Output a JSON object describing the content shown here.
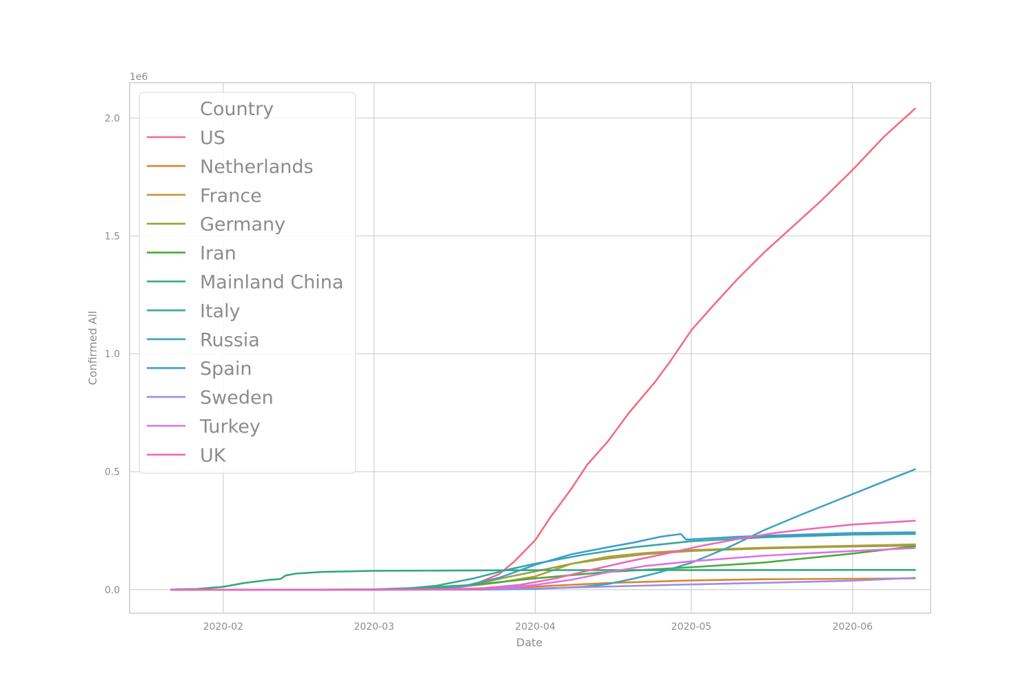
{
  "chart_data": {
    "type": "line",
    "title": "",
    "xlabel": "Date",
    "ylabel": "Confirmed All",
    "y_offset_label": "1e6",
    "xlim": [
      "2020-01-14",
      "2020-06-16"
    ],
    "ylim": [
      -0.1,
      2.15
    ],
    "x_ticks": [
      "2020-02",
      "2020-03",
      "2020-04",
      "2020-05",
      "2020-06"
    ],
    "y_ticks": [
      "0.0",
      "0.5",
      "1.0",
      "1.5",
      "2.0"
    ],
    "grid": true,
    "legend": {
      "title": "Country",
      "placement": "top-left"
    },
    "series": [
      {
        "name": "US",
        "color": "#f06d84",
        "points": [
          [
            "2020-01-22",
            0
          ],
          [
            "2020-03-01",
            0
          ],
          [
            "2020-03-15",
            0.003
          ],
          [
            "2020-03-20",
            0.02
          ],
          [
            "2020-03-25",
            0.065
          ],
          [
            "2020-03-28",
            0.12
          ],
          [
            "2020-04-01",
            0.21
          ],
          [
            "2020-04-04",
            0.31
          ],
          [
            "2020-04-08",
            0.43
          ],
          [
            "2020-04-11",
            0.53
          ],
          [
            "2020-04-15",
            0.63
          ],
          [
            "2020-04-19",
            0.75
          ],
          [
            "2020-04-24",
            0.88
          ],
          [
            "2020-04-27",
            0.97
          ],
          [
            "2020-05-01",
            1.1
          ],
          [
            "2020-05-05",
            1.2
          ],
          [
            "2020-05-10",
            1.32
          ],
          [
            "2020-05-15",
            1.43
          ],
          [
            "2020-05-20",
            1.53
          ],
          [
            "2020-05-26",
            1.65
          ],
          [
            "2020-06-01",
            1.78
          ],
          [
            "2020-06-07",
            1.92
          ],
          [
            "2020-06-13",
            2.04
          ]
        ]
      },
      {
        "name": "Netherlands",
        "color": "#e0822f",
        "points": [
          [
            "2020-01-22",
            0
          ],
          [
            "2020-03-01",
            0
          ],
          [
            "2020-03-20",
            0.004
          ],
          [
            "2020-04-01",
            0.013
          ],
          [
            "2020-04-15",
            0.028
          ],
          [
            "2020-05-01",
            0.039
          ],
          [
            "2020-05-15",
            0.044
          ],
          [
            "2020-06-01",
            0.046
          ],
          [
            "2020-06-13",
            0.048
          ]
        ]
      },
      {
        "name": "France",
        "color": "#bf9838",
        "points": [
          [
            "2020-01-22",
            0
          ],
          [
            "2020-03-01",
            0
          ],
          [
            "2020-03-15",
            0.005
          ],
          [
            "2020-03-25",
            0.03
          ],
          [
            "2020-04-01",
            0.056
          ],
          [
            "2020-04-08",
            0.11
          ],
          [
            "2020-04-15",
            0.14
          ],
          [
            "2020-04-22",
            0.155
          ],
          [
            "2020-05-01",
            0.168
          ],
          [
            "2020-05-15",
            0.178
          ],
          [
            "2020-06-01",
            0.186
          ],
          [
            "2020-06-13",
            0.192
          ]
        ]
      },
      {
        "name": "Germany",
        "color": "#9aa43a",
        "points": [
          [
            "2020-01-22",
            0
          ],
          [
            "2020-03-01",
            0
          ],
          [
            "2020-03-10",
            0.002
          ],
          [
            "2020-03-20",
            0.02
          ],
          [
            "2020-03-27",
            0.055
          ],
          [
            "2020-04-01",
            0.077
          ],
          [
            "2020-04-08",
            0.11
          ],
          [
            "2020-04-15",
            0.132
          ],
          [
            "2020-04-22",
            0.15
          ],
          [
            "2020-05-01",
            0.164
          ],
          [
            "2020-05-15",
            0.175
          ],
          [
            "2020-06-01",
            0.183
          ],
          [
            "2020-06-13",
            0.187
          ]
        ]
      },
      {
        "name": "Iran",
        "color": "#4aab3c",
        "points": [
          [
            "2020-01-22",
            0
          ],
          [
            "2020-02-20",
            0
          ],
          [
            "2020-03-01",
            0.001
          ],
          [
            "2020-03-10",
            0.008
          ],
          [
            "2020-03-20",
            0.02
          ],
          [
            "2020-04-01",
            0.048
          ],
          [
            "2020-04-15",
            0.075
          ],
          [
            "2020-05-01",
            0.095
          ],
          [
            "2020-05-15",
            0.115
          ],
          [
            "2020-06-01",
            0.153
          ],
          [
            "2020-06-13",
            0.184
          ]
        ]
      },
      {
        "name": "Mainland China",
        "color": "#35a77c",
        "points": [
          [
            "2020-01-22",
            0.0006
          ],
          [
            "2020-01-27",
            0.003
          ],
          [
            "2020-02-01",
            0.012
          ],
          [
            "2020-02-05",
            0.028
          ],
          [
            "2020-02-10",
            0.042
          ],
          [
            "2020-02-12",
            0.045
          ],
          [
            "2020-02-13",
            0.06
          ],
          [
            "2020-02-15",
            0.068
          ],
          [
            "2020-02-20",
            0.075
          ],
          [
            "2020-03-01",
            0.08
          ],
          [
            "2020-03-15",
            0.081
          ],
          [
            "2020-04-01",
            0.0825
          ],
          [
            "2020-05-01",
            0.083
          ],
          [
            "2020-06-13",
            0.0835
          ]
        ]
      },
      {
        "name": "Italy",
        "color": "#38a89c",
        "points": [
          [
            "2020-01-22",
            0
          ],
          [
            "2020-02-20",
            0
          ],
          [
            "2020-03-01",
            0.001
          ],
          [
            "2020-03-08",
            0.006
          ],
          [
            "2020-03-13",
            0.017
          ],
          [
            "2020-03-20",
            0.047
          ],
          [
            "2020-03-27",
            0.086
          ],
          [
            "2020-04-01",
            0.11
          ],
          [
            "2020-04-10",
            0.147
          ],
          [
            "2020-04-20",
            0.18
          ],
          [
            "2020-05-01",
            0.205
          ],
          [
            "2020-05-15",
            0.222
          ],
          [
            "2020-06-01",
            0.233
          ],
          [
            "2020-06-13",
            0.236
          ]
        ]
      },
      {
        "name": "Russia",
        "color": "#3ba5bf",
        "points": [
          [
            "2020-01-22",
            0
          ],
          [
            "2020-03-20",
            0
          ],
          [
            "2020-04-01",
            0.003
          ],
          [
            "2020-04-10",
            0.012
          ],
          [
            "2020-04-15",
            0.024
          ],
          [
            "2020-04-20",
            0.047
          ],
          [
            "2020-04-25",
            0.074
          ],
          [
            "2020-05-01",
            0.114
          ],
          [
            "2020-05-08",
            0.178
          ],
          [
            "2020-05-15",
            0.252
          ],
          [
            "2020-05-22",
            0.317
          ],
          [
            "2020-06-01",
            0.405
          ],
          [
            "2020-06-07",
            0.458
          ],
          [
            "2020-06-13",
            0.51
          ]
        ]
      },
      {
        "name": "Spain",
        "color": "#3e9bd8",
        "points": [
          [
            "2020-01-22",
            0
          ],
          [
            "2020-02-25",
            0
          ],
          [
            "2020-03-05",
            0.0003
          ],
          [
            "2020-03-12",
            0.003
          ],
          [
            "2020-03-18",
            0.014
          ],
          [
            "2020-03-25",
            0.05
          ],
          [
            "2020-04-01",
            0.105
          ],
          [
            "2020-04-08",
            0.15
          ],
          [
            "2020-04-15",
            0.18
          ],
          [
            "2020-04-20",
            0.2
          ],
          [
            "2020-04-25",
            0.224
          ],
          [
            "2020-04-29",
            0.236
          ],
          [
            "2020-04-30",
            0.212
          ],
          [
            "2020-05-10",
            0.224
          ],
          [
            "2020-05-20",
            0.232
          ],
          [
            "2020-06-01",
            0.24
          ],
          [
            "2020-06-13",
            0.243
          ]
        ]
      },
      {
        "name": "Sweden",
        "color": "#9c8ee6",
        "points": [
          [
            "2020-01-22",
            0
          ],
          [
            "2020-03-10",
            0
          ],
          [
            "2020-04-01",
            0.005
          ],
          [
            "2020-04-15",
            0.013
          ],
          [
            "2020-05-01",
            0.022
          ],
          [
            "2020-05-15",
            0.029
          ],
          [
            "2020-06-01",
            0.038
          ],
          [
            "2020-06-13",
            0.05
          ]
        ]
      },
      {
        "name": "Turkey",
        "color": "#df6fe8",
        "points": [
          [
            "2020-01-22",
            0
          ],
          [
            "2020-03-12",
            0
          ],
          [
            "2020-03-20",
            0.001
          ],
          [
            "2020-03-27",
            0.01
          ],
          [
            "2020-04-01",
            0.02
          ],
          [
            "2020-04-08",
            0.042
          ],
          [
            "2020-04-15",
            0.074
          ],
          [
            "2020-04-22",
            0.1
          ],
          [
            "2020-05-01",
            0.12
          ],
          [
            "2020-05-15",
            0.144
          ],
          [
            "2020-06-01",
            0.164
          ],
          [
            "2020-06-13",
            0.176
          ]
        ]
      },
      {
        "name": "UK",
        "color": "#f067b8",
        "points": [
          [
            "2020-01-22",
            0
          ],
          [
            "2020-03-01",
            0
          ],
          [
            "2020-03-15",
            0.001
          ],
          [
            "2020-03-22",
            0.006
          ],
          [
            "2020-03-29",
            0.02
          ],
          [
            "2020-04-05",
            0.048
          ],
          [
            "2020-04-12",
            0.085
          ],
          [
            "2020-04-19",
            0.12
          ],
          [
            "2020-04-26",
            0.152
          ],
          [
            "2020-05-03",
            0.186
          ],
          [
            "2020-05-10",
            0.215
          ],
          [
            "2020-05-17",
            0.24
          ],
          [
            "2020-05-24",
            0.258
          ],
          [
            "2020-06-01",
            0.276
          ],
          [
            "2020-06-13",
            0.292
          ]
        ]
      }
    ]
  }
}
